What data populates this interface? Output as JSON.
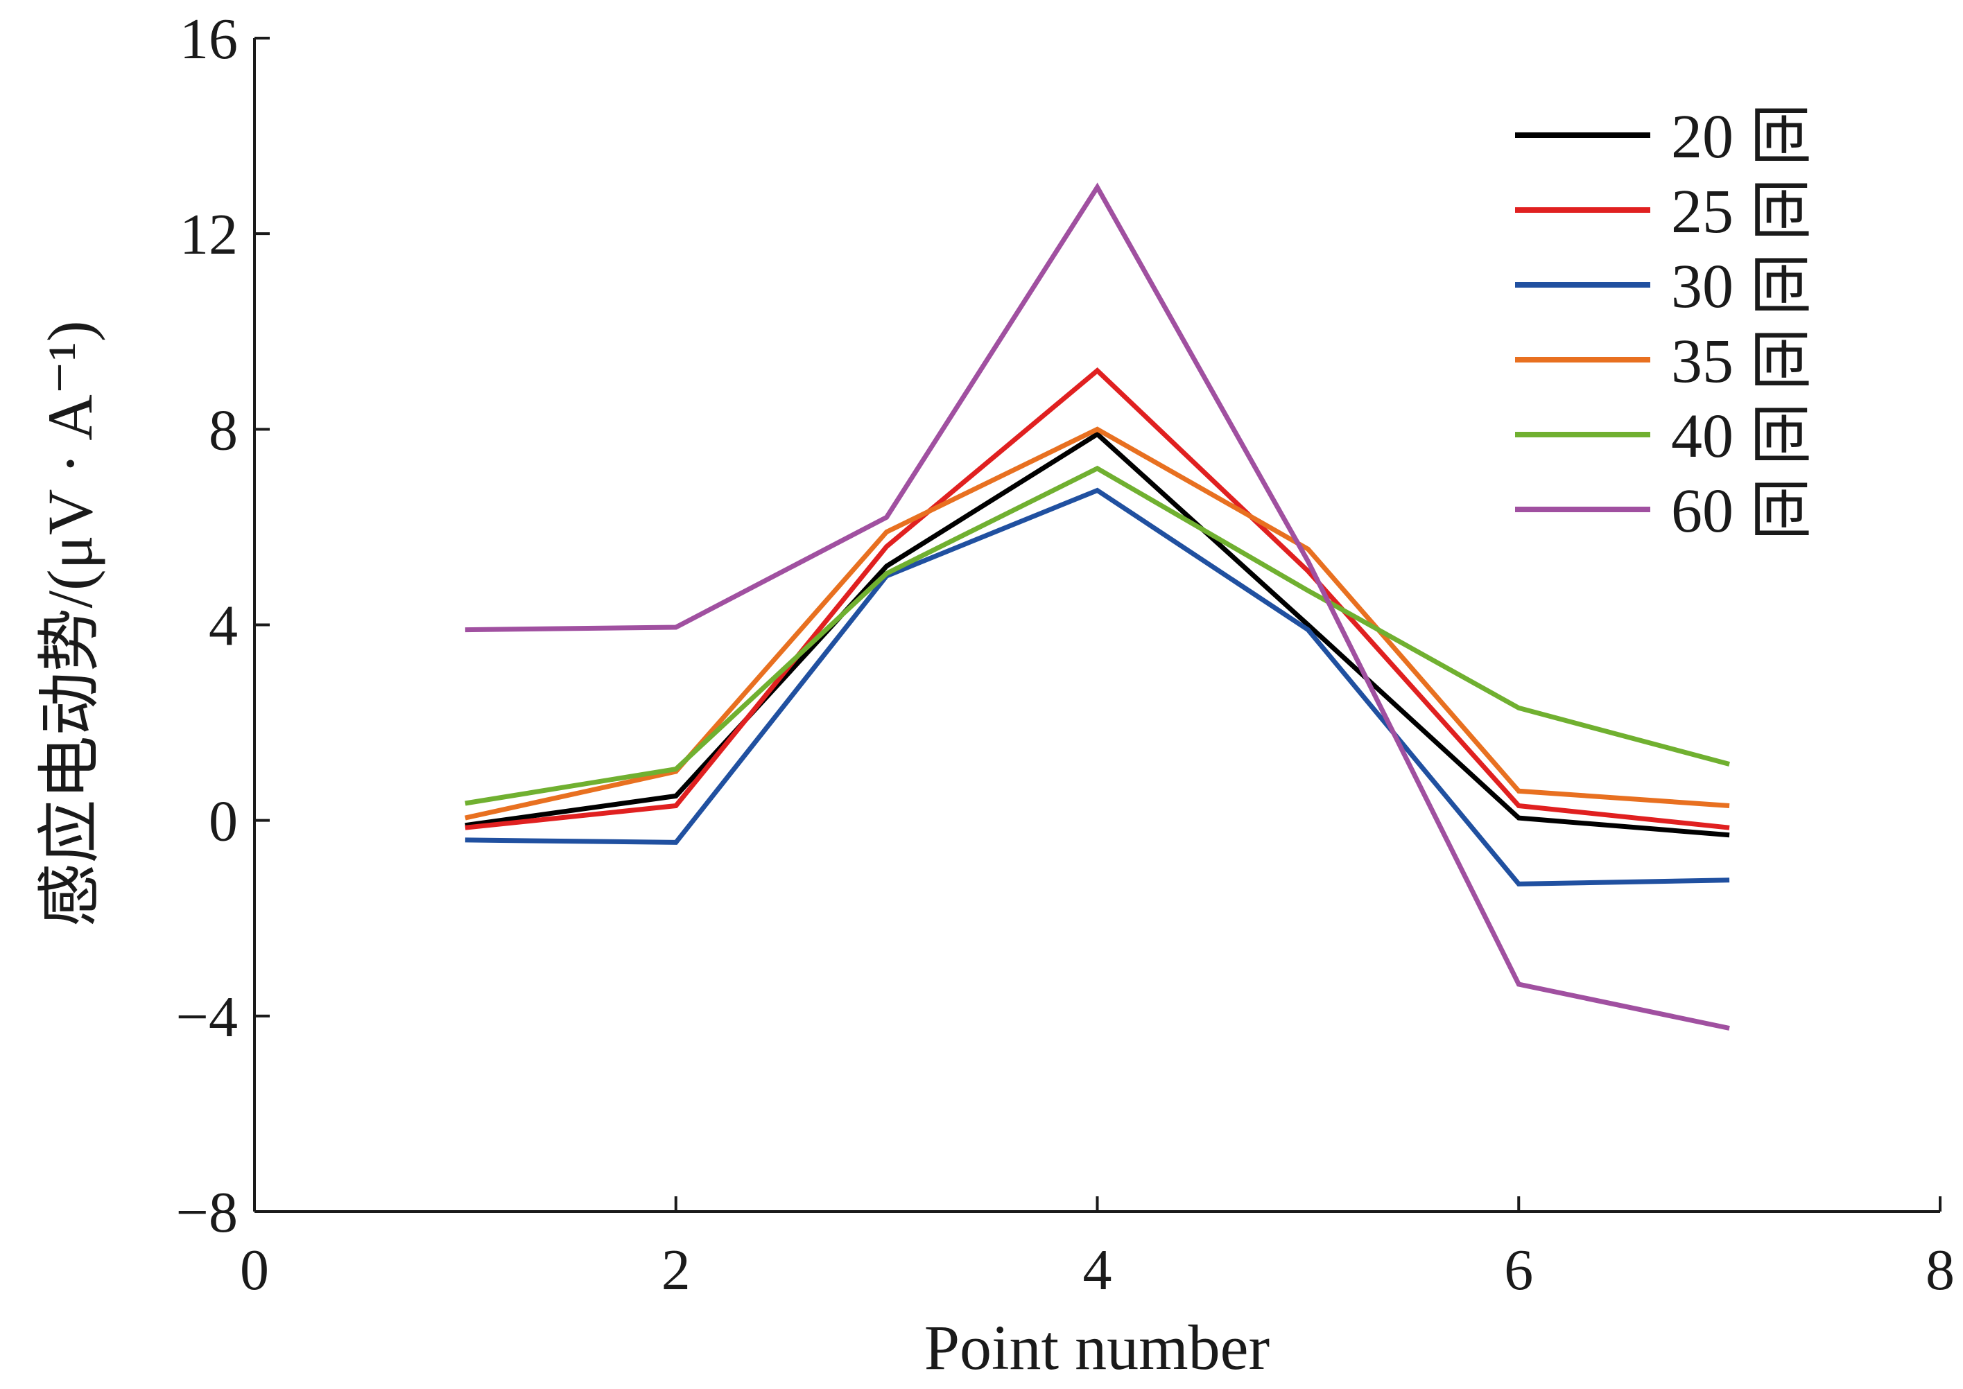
{
  "chart_data": {
    "type": "line",
    "xlabel": "Point number",
    "ylabel": "感应电动势/(μV · A⁻¹)",
    "xlim": [
      0,
      8
    ],
    "ylim": [
      -8,
      16
    ],
    "xticks": [
      "0",
      "2",
      "4",
      "6",
      "8"
    ],
    "yticks": [
      "−8",
      "−4",
      "0",
      "4",
      "8",
      "12",
      "16"
    ],
    "grid": false,
    "legend_position": "top-right",
    "x": [
      1,
      2,
      3,
      4,
      5,
      6,
      7
    ],
    "series": [
      {
        "name": "20 匝",
        "color": "#000000",
        "values": [
          -0.1,
          0.5,
          5.2,
          7.9,
          4.0,
          0.05,
          -0.3
        ]
      },
      {
        "name": "25 匝",
        "color": "#e02020",
        "values": [
          -0.15,
          0.3,
          5.6,
          9.2,
          5.1,
          0.3,
          -0.15
        ]
      },
      {
        "name": "30 匝",
        "color": "#2050a0",
        "values": [
          -0.4,
          -0.45,
          5.0,
          6.75,
          3.9,
          -1.3,
          -1.22
        ]
      },
      {
        "name": "35 匝",
        "color": "#e87020",
        "values": [
          0.05,
          1.0,
          5.9,
          8.0,
          5.55,
          0.6,
          0.3
        ]
      },
      {
        "name": "40 匝",
        "color": "#70b030",
        "values": [
          0.35,
          1.05,
          5.05,
          7.2,
          4.7,
          2.3,
          1.15
        ]
      },
      {
        "name": "60 匝",
        "color": "#a050a0",
        "values": [
          3.9,
          3.95,
          6.2,
          12.95,
          5.3,
          -3.35,
          -4.25
        ]
      }
    ]
  }
}
